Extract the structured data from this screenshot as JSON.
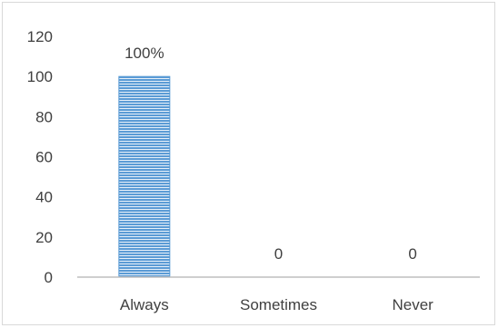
{
  "chart_data": {
    "type": "bar",
    "categories": [
      "Always",
      "Sometimes",
      "Never"
    ],
    "values": [
      100,
      0,
      0
    ],
    "data_labels": [
      "100%",
      "0",
      "0"
    ],
    "y_ticks": [
      "0",
      "20",
      "40",
      "60",
      "80",
      "100",
      "120"
    ],
    "ylim": [
      0,
      120
    ],
    "grid": false,
    "legend": "none",
    "bar_color": "#5b9bd5",
    "bar_stripe_color": "#ffffff"
  }
}
